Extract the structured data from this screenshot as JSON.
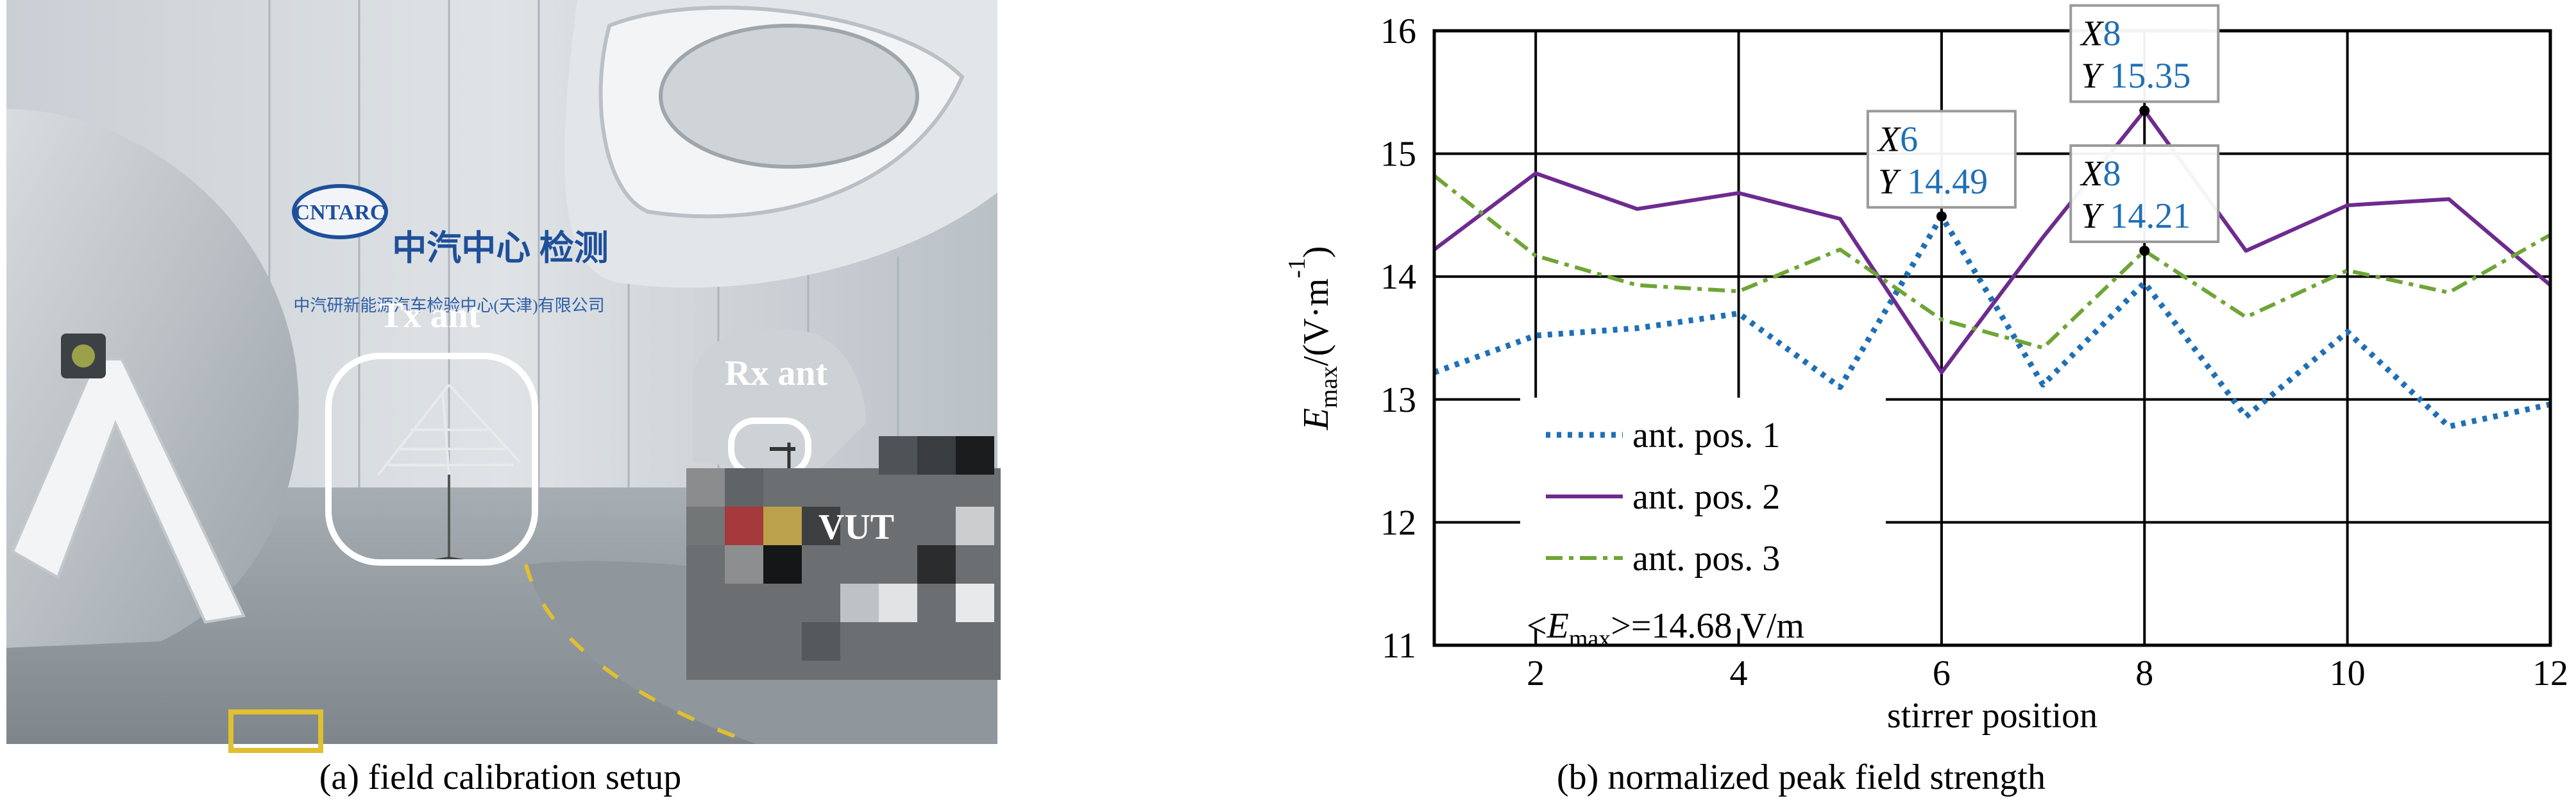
{
  "photo": {
    "caption": "(a) field calibration setup",
    "labels": {
      "tx": "Tx ant",
      "rx": "Rx ant",
      "vut": "VUT"
    },
    "wall_logo": "CNTARC",
    "wall_text_main": "中汽中心 检测",
    "wall_text_sub": "中汽研新能源汽车检验中心(天津)有限公司"
  },
  "chart_data": {
    "type": "line",
    "caption": "(b) normalized peak field strength",
    "xlabel": "stirrer position",
    "ylabel": "E_max/(V·m^-1)",
    "xlim": [
      1,
      12
    ],
    "ylim": [
      11,
      16
    ],
    "xticks": [
      2,
      4,
      6,
      8,
      10,
      12
    ],
    "yticks": [
      11,
      12,
      13,
      14,
      15,
      16
    ],
    "grid": true,
    "legend_position": "bottom-left",
    "x": [
      1,
      2,
      3,
      4,
      5,
      6,
      7,
      8,
      9,
      10,
      11,
      12
    ],
    "series": [
      {
        "name": "ant. pos. 1",
        "style": "dotted",
        "color": "#1f6fb5",
        "values": [
          13.22,
          13.52,
          13.58,
          13.7,
          13.1,
          14.49,
          13.12,
          13.95,
          12.86,
          13.55,
          12.78,
          12.96
        ]
      },
      {
        "name": "ant. pos. 2",
        "style": "solid",
        "color": "#6d2b8f",
        "values": [
          14.22,
          14.84,
          14.55,
          14.68,
          14.47,
          13.22,
          14.32,
          15.35,
          14.21,
          14.58,
          14.63,
          13.93
        ]
      },
      {
        "name": "ant. pos. 3",
        "style": "dashdot",
        "color": "#6ea535",
        "values": [
          14.82,
          14.17,
          13.93,
          13.88,
          14.22,
          13.65,
          13.42,
          14.21,
          13.67,
          14.05,
          13.87,
          14.34
        ]
      }
    ],
    "annotation_text": "<E_max>=14.68 V/m",
    "datatips": [
      {
        "x": 6,
        "y": 14.49,
        "x_label": "X",
        "x_value": "6",
        "y_label": "Y",
        "y_value": "14.49"
      },
      {
        "x": 8,
        "y": 14.21,
        "x_label": "X",
        "x_value": "8",
        "y_label": "Y",
        "y_value": "14.21"
      },
      {
        "x": 8,
        "y": 15.35,
        "x_label": "X",
        "x_value": "8",
        "y_label": "Y",
        "y_value": "15.35"
      }
    ]
  }
}
